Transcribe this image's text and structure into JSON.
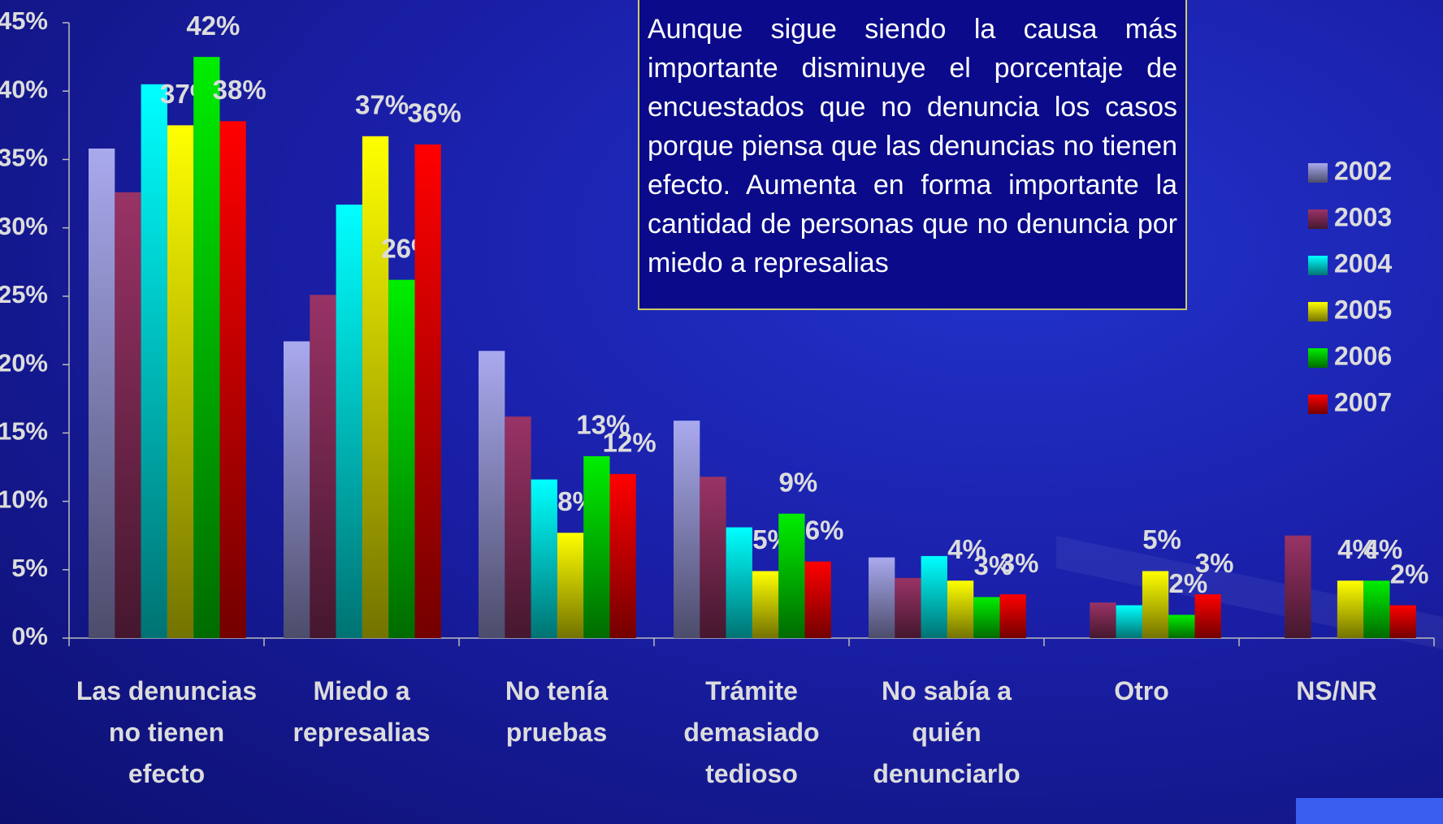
{
  "chart_data": {
    "type": "bar",
    "annotation": "Aunque sigue siendo la causa más importante disminuye el porcentaje de encuestados que no denuncia los casos porque piensa que las denuncias no tienen efecto. Aumenta en forma importante la cantidad de personas que no denuncia por miedo a represalias",
    "categories": [
      "Las denuncias no tienen efecto",
      "Miedo a represalias",
      "No tenía pruebas",
      "Trámite demasiado tedioso",
      "No sabía a quién denunciarlo",
      "Otro",
      "NS/NR"
    ],
    "series": [
      {
        "name": "2002",
        "color": "#a9a9ee",
        "values": [
          35.8,
          21.7,
          21.0,
          15.9,
          5.9,
          null,
          null
        ]
      },
      {
        "name": "2003",
        "color": "#993366",
        "values": [
          32.6,
          25.1,
          16.2,
          11.8,
          4.4,
          2.6,
          7.5
        ]
      },
      {
        "name": "2004",
        "color": "#00ffff",
        "values": [
          40.5,
          31.7,
          11.6,
          8.1,
          6.0,
          2.4,
          null
        ]
      },
      {
        "name": "2005",
        "color": "#ffff00",
        "values": [
          37.5,
          36.7,
          7.7,
          4.9,
          4.2,
          4.9,
          4.2
        ],
        "value_labels": [
          "37%",
          "37%",
          "8%",
          "5%",
          "4%",
          "5%",
          "4%"
        ]
      },
      {
        "name": "2006",
        "color": "#00ee00",
        "values": [
          42.5,
          26.2,
          13.3,
          9.1,
          3.0,
          1.7,
          4.2
        ],
        "value_labels": [
          "42%",
          "26%",
          "13%",
          "9%",
          "3%",
          "2%",
          "4%"
        ]
      },
      {
        "name": "2007",
        "color": "#ff0000",
        "values": [
          37.8,
          36.1,
          12.0,
          5.6,
          3.2,
          3.2,
          2.4
        ],
        "value_labels": [
          "38%",
          "36%",
          "12%",
          "6%",
          "3%",
          "3%",
          "2%"
        ]
      }
    ],
    "ylim": [
      0,
      45
    ],
    "yticks": [
      {
        "value": 0,
        "label": "0%"
      },
      {
        "value": 5,
        "label": "5%"
      },
      {
        "value": 10,
        "label": "10%"
      },
      {
        "value": 15,
        "label": "15%"
      },
      {
        "value": 20,
        "label": "20%"
      },
      {
        "value": 25,
        "label": "25%"
      },
      {
        "value": 30,
        "label": "30%"
      },
      {
        "value": 35,
        "label": "35%"
      },
      {
        "value": 40,
        "label": "40%"
      },
      {
        "value": 45,
        "label": "45%"
      }
    ],
    "legend": "right"
  }
}
